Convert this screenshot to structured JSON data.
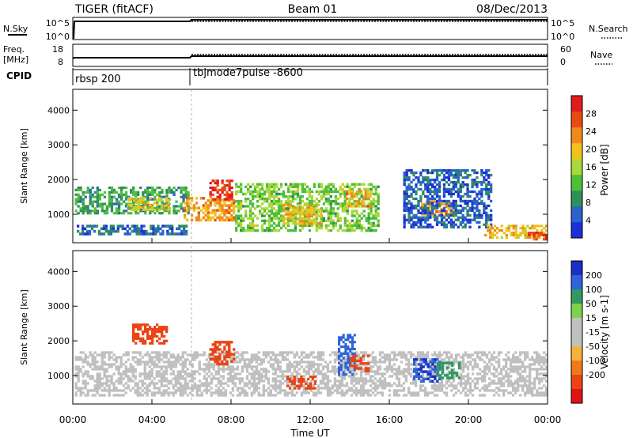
{
  "header": {
    "radar": "TIGER (fitACF)",
    "beam": "Beam 01",
    "date": "08/Dec/2013"
  },
  "top_panels": {
    "nsky_label": "N.Sky",
    "nsky_ticks": [
      "10^5",
      "10^0"
    ],
    "nsearch_label": "N.Search",
    "nsearch_ticks": [
      "10^5",
      "10^0"
    ],
    "freq_label": "Freq.",
    "freq_unit": "[MHz]",
    "freq_ticks": [
      "18",
      "8"
    ],
    "nave_label": "Nave",
    "nave_ticks": [
      "60",
      "0"
    ],
    "cpid_label": "CPID",
    "cpid_segments": [
      {
        "name": "rbsp 200",
        "start_hour": 0,
        "end_hour": 6
      },
      {
        "name": "tbjmode7pulse -8600",
        "start_hour": 6,
        "end_hour": 24
      }
    ]
  },
  "colors": {
    "power_scale": [
      "#1d2fd8",
      "#2a63c9",
      "#2f8f5a",
      "#4fbf3a",
      "#a9d93a",
      "#f2c21c",
      "#f08a1c",
      "#ea4a14",
      "#e01c1c"
    ],
    "velocity_scale": [
      "#1a2fc6",
      "#2f63d8",
      "#2f9960",
      "#7fd04a",
      "#c0c0c0",
      "#c0c0c0",
      "#f7b23a",
      "#f07a1a",
      "#ea4416",
      "#e01414"
    ]
  },
  "chart_data": [
    {
      "type": "heatmap",
      "panel": "power",
      "ylabel": "Slant Range [km]",
      "ylim": [
        180,
        4600
      ],
      "yticks": [
        1000,
        2000,
        3000,
        4000
      ],
      "xlim": [
        0,
        24
      ],
      "colorbar_label": "Power [dB]",
      "colorbar_range": [
        0,
        32
      ],
      "colorbar_ticks": [
        4,
        8,
        12,
        16,
        20,
        24,
        28
      ],
      "bands": [
        {
          "t0": 0.1,
          "t1": 5.9,
          "r0": 1000,
          "r1": 1800,
          "value": 10
        },
        {
          "t0": 0.2,
          "t1": 5.8,
          "r0": 400,
          "r1": 700,
          "value": 6
        },
        {
          "t0": 2.8,
          "t1": 4.9,
          "r0": 1100,
          "r1": 1500,
          "value": 18
        },
        {
          "t0": 5.6,
          "t1": 8.2,
          "r0": 800,
          "r1": 1500,
          "value": 22
        },
        {
          "t0": 6.9,
          "t1": 8.1,
          "r0": 1400,
          "r1": 2000,
          "value": 28
        },
        {
          "t0": 8.2,
          "t1": 15.5,
          "r0": 500,
          "r1": 1900,
          "value": 14
        },
        {
          "t0": 10.6,
          "t1": 12.6,
          "r0": 700,
          "r1": 1300,
          "value": 20
        },
        {
          "t0": 13.8,
          "t1": 15.1,
          "r0": 1200,
          "r1": 1700,
          "value": 22
        },
        {
          "t0": 17.6,
          "t1": 19.3,
          "r0": 900,
          "r1": 1400,
          "value": 22
        },
        {
          "t0": 16.7,
          "t1": 21.2,
          "r0": 600,
          "r1": 2300,
          "value": 5
        },
        {
          "t0": 20.8,
          "t1": 24,
          "r0": 300,
          "r1": 700,
          "value": 20
        },
        {
          "t0": 23.0,
          "t1": 24,
          "r0": 250,
          "r1": 500,
          "value": 28
        }
      ]
    },
    {
      "type": "heatmap",
      "panel": "velocity",
      "ylabel": "Slant Range [km]",
      "ylim": [
        180,
        4600
      ],
      "yticks": [
        1000,
        2000,
        3000,
        4000
      ],
      "xlim": [
        0,
        24
      ],
      "xticks": [
        "00:00",
        "04:00",
        "08:00",
        "12:00",
        "16:00",
        "20:00",
        "00:00"
      ],
      "xlabel": "Time UT",
      "colorbar_label": "Velocity [m s-1]",
      "colorbar_ticks": [
        "200",
        "100",
        "50",
        "15",
        "-15",
        "-50",
        "-100",
        "-200"
      ],
      "bands": [
        {
          "t0": 0.1,
          "t1": 24,
          "r0": 400,
          "r1": 1700,
          "value": 0
        },
        {
          "t0": 3.0,
          "t1": 4.8,
          "r0": 1900,
          "r1": 2500,
          "value": -150
        },
        {
          "t0": 6.9,
          "t1": 8.2,
          "r0": 1300,
          "r1": 2000,
          "value": -180
        },
        {
          "t0": 10.8,
          "t1": 12.3,
          "r0": 600,
          "r1": 1000,
          "value": -120
        },
        {
          "t0": 13.4,
          "t1": 14.3,
          "r0": 1000,
          "r1": 2200,
          "value": 180
        },
        {
          "t0": 14.0,
          "t1": 15.0,
          "r0": 1100,
          "r1": 1600,
          "value": -180
        },
        {
          "t0": 17.2,
          "t1": 18.6,
          "r0": 800,
          "r1": 1500,
          "value": 200
        },
        {
          "t0": 18.4,
          "t1": 19.6,
          "r0": 900,
          "r1": 1400,
          "value": 60
        }
      ]
    }
  ]
}
